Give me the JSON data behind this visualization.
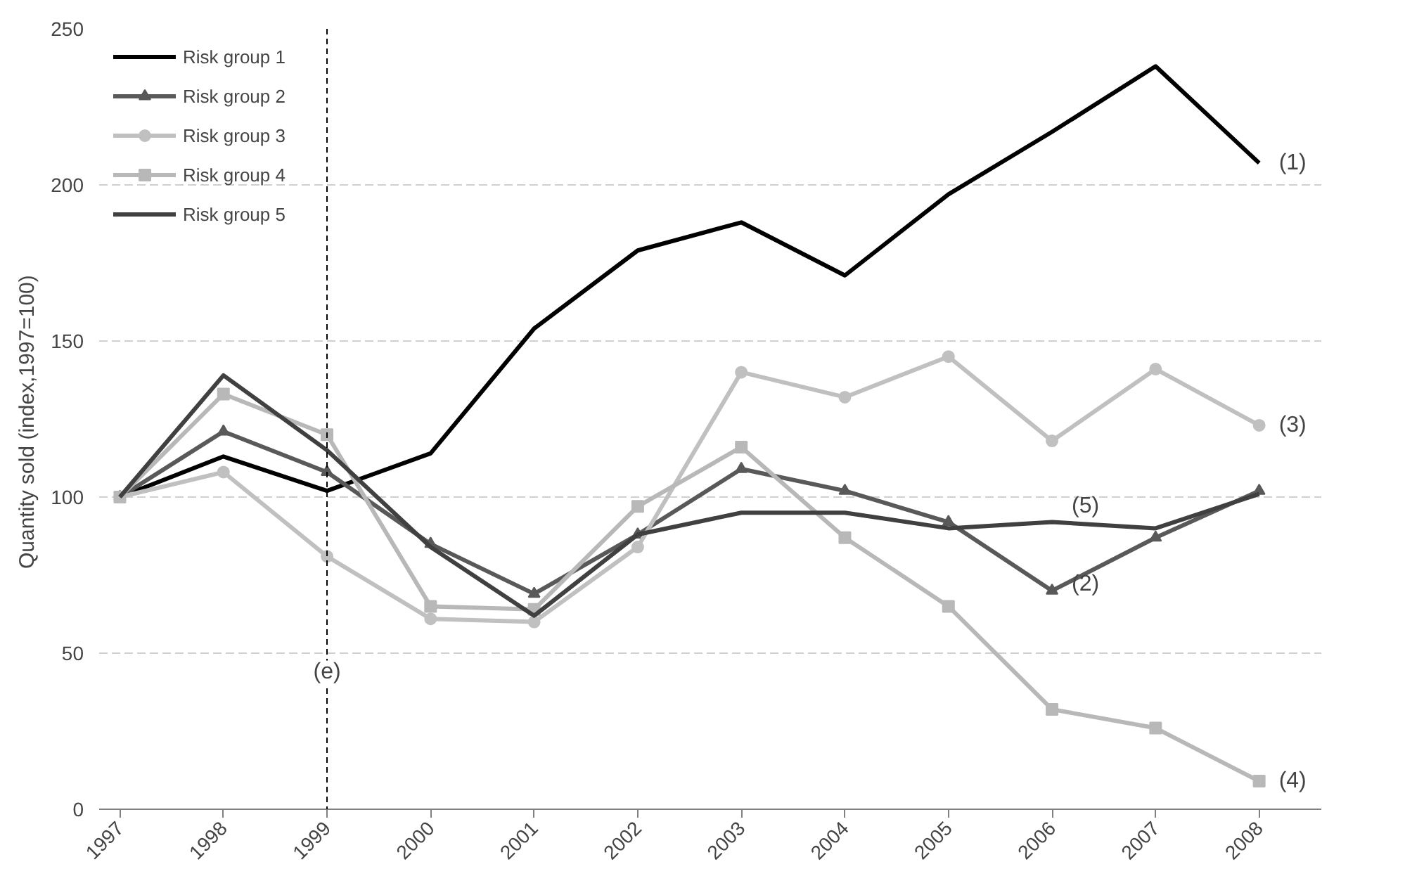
{
  "chart_data": {
    "type": "line",
    "ylabel": "Quantity sold  (index,1997=100)",
    "categories": [
      "1997",
      "1998",
      "1999",
      "2000",
      "2001",
      "2002",
      "2003",
      "2004",
      "2005",
      "2006",
      "2007",
      "2008"
    ],
    "series": [
      {
        "name": "Risk group 1",
        "color": "#000000",
        "marker": "none",
        "values": [
          100,
          113,
          102,
          114,
          154,
          179,
          188,
          171,
          197,
          217,
          238,
          207
        ]
      },
      {
        "name": "Risk group 2",
        "color": "#595959",
        "marker": "triangle",
        "values": [
          100,
          121,
          108,
          85,
          69,
          88,
          109,
          102,
          92,
          70,
          87,
          102
        ]
      },
      {
        "name": "Risk group 3",
        "color": "#c0c0c0",
        "marker": "circle",
        "values": [
          100,
          108,
          81,
          61,
          60,
          84,
          140,
          132,
          145,
          118,
          141,
          123
        ]
      },
      {
        "name": "Risk group 4",
        "color": "#b8b8b8",
        "marker": "square",
        "values": [
          100,
          133,
          120,
          65,
          64,
          97,
          116,
          87,
          65,
          32,
          26,
          9
        ]
      },
      {
        "name": "Risk group 5",
        "color": "#404040",
        "marker": "none",
        "values": [
          100,
          139,
          115,
          84,
          62,
          88,
          95,
          95,
          90,
          92,
          90,
          101
        ]
      }
    ],
    "ylim": [
      0,
      250
    ],
    "yticks": [
      0,
      50,
      100,
      150,
      200,
      250
    ],
    "grid": "y",
    "legend": "top left",
    "ref_lines": [
      {
        "axis": "x",
        "value": "1999",
        "label": "(e)",
        "line_style": "dashed",
        "color": "#000000"
      }
    ],
    "annotations": [
      {
        "text": "(1)",
        "x": "2008",
        "y": 207
      },
      {
        "text": "(3)",
        "x": "2008",
        "y": 123
      },
      {
        "text": "(5)",
        "x": "2006",
        "y": 92
      },
      {
        "text": "(2)",
        "x": "2006",
        "y": 72
      },
      {
        "text": "(4)",
        "x": "2008",
        "y": 9
      }
    ]
  }
}
